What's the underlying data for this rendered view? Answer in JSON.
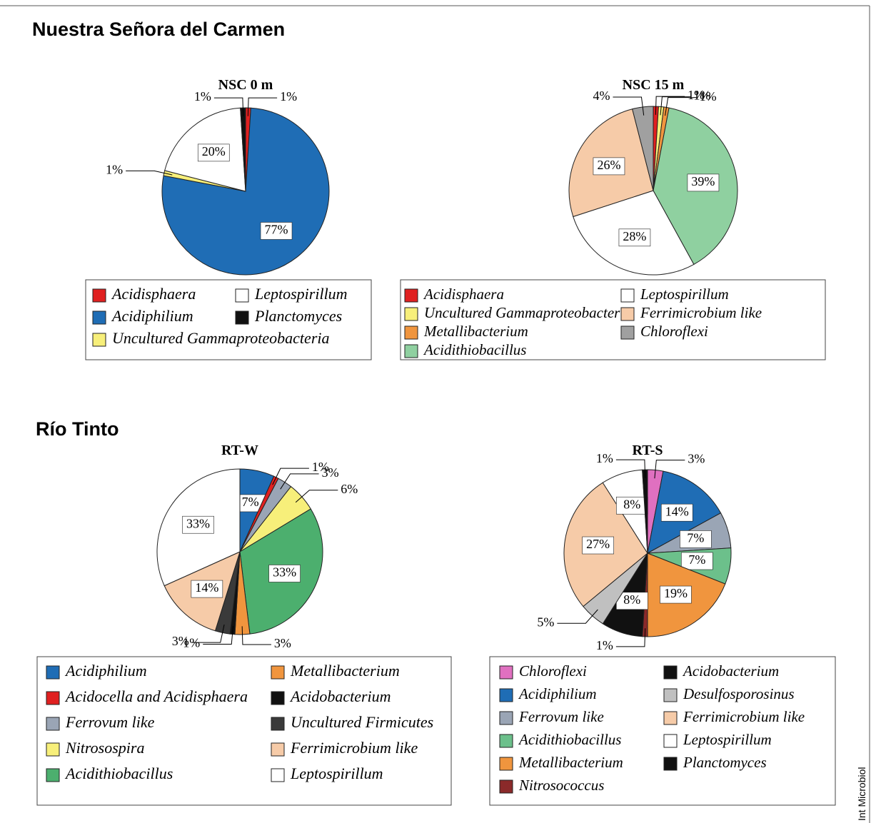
{
  "headings": [
    "Nuestra Señora del Carmen",
    "Río Tinto"
  ],
  "credit": "Int Microbiol",
  "chart_data": [
    {
      "type": "pie",
      "title": "NSC 0 m",
      "categories": [
        "Acidisphaera",
        "Acidiphilium",
        "Uncultured Gammaproteobacteria",
        "Leptospirillum",
        "Planctomyces"
      ],
      "values": [
        1,
        77,
        1,
        20,
        1
      ],
      "value_labels": [
        "1%",
        "77%",
        "1%",
        "20%",
        "1%"
      ],
      "colors": [
        "#e02020",
        "#1f6db5",
        "#f7ef7a",
        "#ffffff",
        "#111111"
      ]
    },
    {
      "type": "pie",
      "title": "NSC 15 m",
      "categories": [
        "Acidisphaera",
        "Uncultured Gammaproteobacteria",
        "Metallibacterium",
        "Acidithiobacillus",
        "Leptospirillum",
        "Ferrimicrobium like",
        "Chloroflexi"
      ],
      "values": [
        1,
        1,
        1,
        39,
        28,
        26,
        4
      ],
      "value_labels": [
        "1%",
        "1%",
        "1%",
        "39%",
        "28%",
        "26%",
        "4%"
      ],
      "colors": [
        "#e02020",
        "#f7ef7a",
        "#f0953e",
        "#8fd0a0",
        "#ffffff",
        "#f6cba8",
        "#a0a0a0"
      ]
    },
    {
      "type": "pie",
      "title": "RT-W",
      "categories": [
        "Acidiphilium",
        "Acidocella and Acidisphaera",
        "Ferrovum like",
        "Nitrosospira",
        "Acidithiobacillus",
        "Metallibacterium",
        "Acidobacterium",
        "Uncultured Firmicutes",
        "Ferrimicrobium like",
        "Leptospirillum"
      ],
      "values": [
        7,
        1,
        3,
        6,
        33,
        3,
        1,
        3,
        14,
        33
      ],
      "value_labels": [
        "7%",
        "1%",
        "3%",
        "6%",
        "33%",
        "3%",
        "1%",
        "3%",
        "14%",
        "33%"
      ],
      "colors": [
        "#1f6db5",
        "#e02020",
        "#9aa5b5",
        "#f7ef7a",
        "#4caf6e",
        "#f0953e",
        "#111111",
        "#3a3a3a",
        "#f6cba8",
        "#ffffff"
      ]
    },
    {
      "type": "pie",
      "title": "RT-S",
      "categories": [
        "Chloroflexi",
        "Acidiphilium",
        "Ferrovum like",
        "Acidithiobacillus",
        "Metallibacterium",
        "Nitrosococcus",
        "Acidobacterium",
        "Desulfosporosinus",
        "Ferrimicrobium like",
        "Leptospirillum",
        "Planctomyces"
      ],
      "values": [
        3,
        14,
        7,
        7,
        19,
        1,
        8,
        5,
        27,
        8,
        1
      ],
      "value_labels": [
        "3%",
        "14%",
        "7%",
        "7%",
        "19%",
        "1%",
        "8%",
        "5%",
        "27%",
        "8%",
        "1%"
      ],
      "colors": [
        "#e070c0",
        "#1f6db5",
        "#9aa5b5",
        "#6cc08b",
        "#f0953e",
        "#8b2a2a",
        "#111111",
        "#c0c0c0",
        "#f6cba8",
        "#ffffff",
        "#111111"
      ]
    }
  ]
}
